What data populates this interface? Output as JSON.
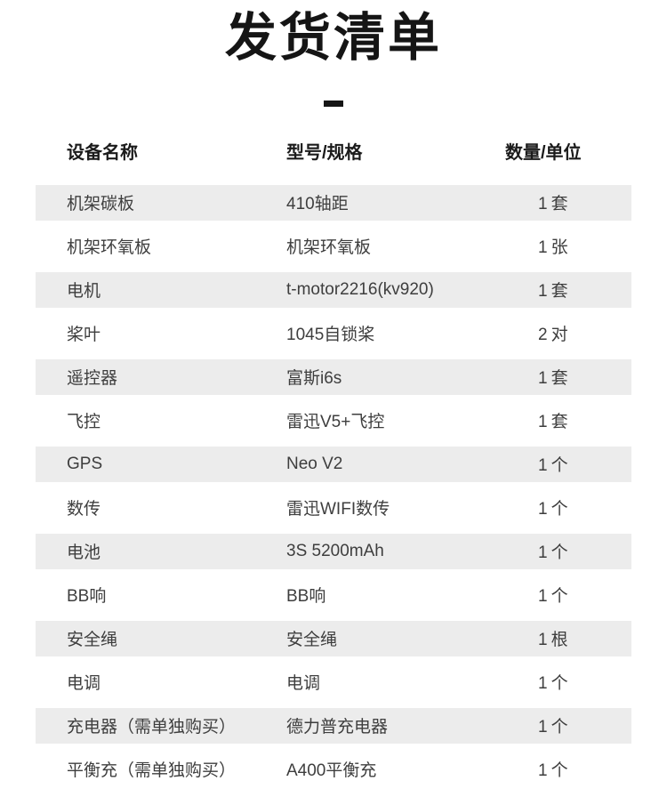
{
  "title": "发货清单",
  "table": {
    "headers": [
      "设备名称",
      "型号/规格",
      "数量/单位"
    ],
    "rows": [
      {
        "name": "机架碳板",
        "spec": "410轴距",
        "qty": "1套"
      },
      {
        "name": "机架环氧板",
        "spec": "机架环氧板",
        "qty": "1张"
      },
      {
        "name": "电机",
        "spec": "t-motor2216(kv920)",
        "qty": "1套"
      },
      {
        "name": "桨叶",
        "spec": "1045自锁桨",
        "qty": "2对"
      },
      {
        "name": "遥控器",
        "spec": "富斯i6s",
        "qty": "1套"
      },
      {
        "name": "飞控",
        "spec": "雷迅V5+飞控",
        "qty": "1套"
      },
      {
        "name": "GPS",
        "spec": "Neo V2",
        "qty": "1个"
      },
      {
        "name": "数传",
        "spec": "雷迅WIFI数传",
        "qty": "1个"
      },
      {
        "name": "电池",
        "spec": "3S 5200mAh",
        "qty": "1个"
      },
      {
        "name": "BB响",
        "spec": "BB响",
        "qty": "1个"
      },
      {
        "name": "安全绳",
        "spec": "安全绳",
        "qty": "1根"
      },
      {
        "name": "电调",
        "spec": "电调",
        "qty": "1个"
      },
      {
        "name": "充电器（需单独购买）",
        "spec": "德力普充电器",
        "qty": "1个"
      },
      {
        "name": "平衡充（需单独购买）",
        "spec": "A400平衡充",
        "qty": "1个"
      }
    ]
  },
  "colors": {
    "row_alt_bg": "#ececec",
    "cell_text": "#3e3e3e",
    "heading_text": "#1b1b1b",
    "title_text": "#151515"
  }
}
